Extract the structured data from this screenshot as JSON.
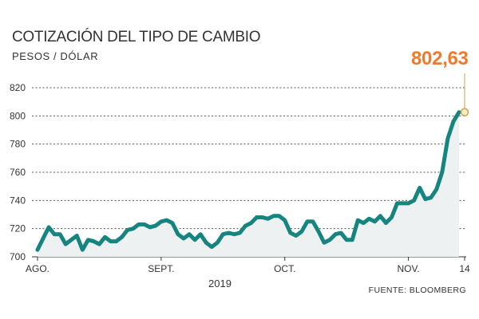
{
  "title": "COTIZACIÓN DEL TIPO DE CAMBIO",
  "subtitle": "PESOS / DÓLAR",
  "source": "FUENTE: BLOOMBERG",
  "year_label": "2019",
  "last_value_label": "802,63",
  "colors": {
    "line": "#16857f",
    "area": "#eef1f2",
    "highlight": "#f07a2a",
    "grid": "#555555"
  },
  "chart_data": {
    "type": "area",
    "title": "COTIZACIÓN DEL TIPO DE CAMBIO",
    "ylabel": "PESOS / DÓLAR",
    "ylim": [
      700,
      820
    ],
    "yticks": [
      700,
      720,
      740,
      760,
      780,
      800,
      820
    ],
    "xlim": [
      0,
      76
    ],
    "x_ticks": [
      {
        "x": 0,
        "label": "AGO."
      },
      {
        "x": 22,
        "label": "SEPT."
      },
      {
        "x": 44,
        "label": "OCT."
      },
      {
        "x": 66,
        "label": "NOV."
      },
      {
        "x": 76,
        "label": "14"
      }
    ],
    "grid": true,
    "series": [
      {
        "values": [
          705,
          713,
          721,
          716,
          716,
          709,
          712,
          715,
          705,
          712,
          711,
          709,
          714,
          711,
          711,
          714,
          719,
          720,
          723,
          723,
          721,
          722,
          725,
          726,
          724,
          716,
          713,
          716,
          712,
          716,
          710,
          707,
          710,
          716,
          717,
          716,
          717,
          722,
          724,
          728,
          728,
          727,
          729,
          729,
          726,
          717,
          715,
          718,
          725,
          725,
          718,
          710,
          712,
          716,
          717,
          712,
          712,
          726,
          724,
          727,
          725,
          729,
          724,
          728,
          738,
          738,
          738,
          740,
          749,
          741,
          742,
          748,
          760,
          784,
          796,
          802.63
        ]
      }
    ],
    "annotations": [
      {
        "x": 76,
        "y": 802.63,
        "label": "802,63"
      }
    ]
  }
}
